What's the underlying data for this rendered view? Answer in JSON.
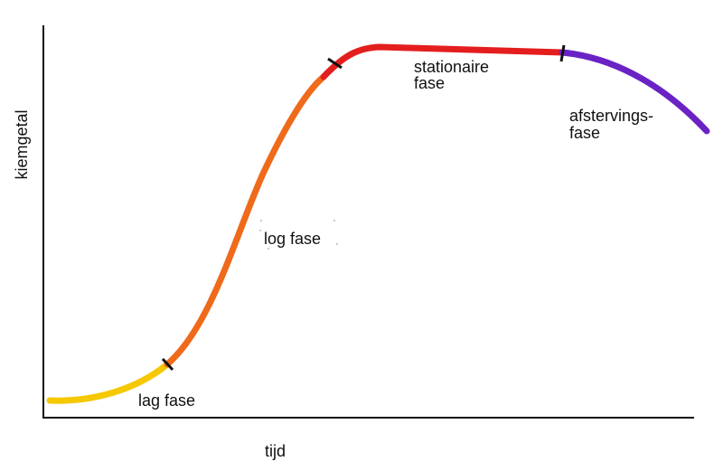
{
  "axes": {
    "y_label": "kiemgetal",
    "x_label": "tijd"
  },
  "phases": [
    {
      "lines": [
        "lag fase"
      ]
    },
    {
      "lines": [
        "log fase"
      ]
    },
    {
      "lines": [
        "stationaire",
        "fase"
      ]
    },
    {
      "lines": [
        "afstervings-",
        "fase"
      ]
    }
  ]
}
